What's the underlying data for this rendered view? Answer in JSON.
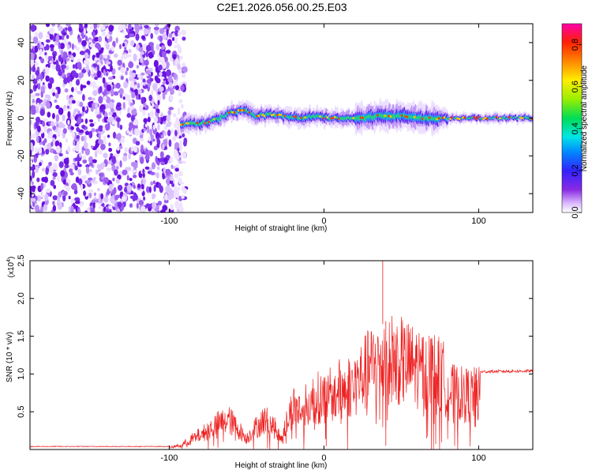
{
  "title": "C2E1.2026.056.00.25.E03",
  "colors": {
    "snr_line": "#ee2222",
    "frame": "#000000"
  },
  "chart_data": [
    {
      "type": "heatmap",
      "name": "spectrogram",
      "xlabel": "Height of straight line (km)",
      "ylabel": "Frequency (Hz)",
      "xlim": [
        -190,
        135
      ],
      "ylim": [
        -50,
        50
      ],
      "x_ticks": [
        -100,
        0,
        100
      ],
      "x_tick_labels": [
        "-100",
        "0",
        "100"
      ],
      "y_ticks": [
        -40,
        -20,
        0,
        20,
        40
      ],
      "y_tick_labels": [
        "-40",
        "-20",
        "0",
        "20",
        "40"
      ],
      "noise_region_x": [
        -190,
        -92
      ],
      "signal_ridge": [
        [
          -92,
          -3
        ],
        [
          -80,
          -3
        ],
        [
          -70,
          -1
        ],
        [
          -60,
          3
        ],
        [
          -50,
          4
        ],
        [
          -45,
          1
        ],
        [
          -35,
          2
        ],
        [
          -25,
          1
        ],
        [
          -15,
          0
        ],
        [
          -5,
          1
        ],
        [
          5,
          0
        ],
        [
          15,
          0
        ],
        [
          25,
          0
        ],
        [
          35,
          1
        ],
        [
          45,
          1
        ],
        [
          55,
          1
        ],
        [
          65,
          0
        ],
        [
          75,
          0
        ],
        [
          85,
          0
        ],
        [
          95,
          0
        ],
        [
          105,
          0
        ],
        [
          115,
          0
        ],
        [
          125,
          0
        ],
        [
          135,
          0
        ]
      ],
      "colorbar": {
        "label": "Normalized spectral amplitude",
        "range": [
          0.0,
          0.9
        ],
        "ticks": [
          0.0,
          0.2,
          0.4,
          0.6,
          0.8
        ],
        "tick_labels": [
          "0.0",
          "0.2",
          "0.4",
          "0.6",
          "0.8"
        ]
      }
    },
    {
      "type": "line",
      "name": "snr",
      "xlabel": "Height of straight line (km)",
      "ylabel": "SNR (10 * v/v)",
      "y_scale_label": "(x10",
      "y_scale_exponent": "4",
      "y_scale_close": ")",
      "xlim": [
        -190,
        135
      ],
      "ylim": [
        0,
        2.5
      ],
      "x_ticks": [
        -100,
        0,
        100
      ],
      "x_tick_labels": [
        "-100",
        "0",
        "100"
      ],
      "y_ticks": [
        0.5,
        1.0,
        1.5,
        2.0,
        2.5
      ],
      "y_tick_labels": [
        "0.5",
        "1.0",
        "1.5",
        "2.0",
        "2.5"
      ],
      "envelope": [
        [
          -190,
          0.04
        ],
        [
          -100,
          0.04
        ],
        [
          -92,
          0.08
        ],
        [
          -85,
          0.2
        ],
        [
          -78,
          0.3
        ],
        [
          -70,
          0.45
        ],
        [
          -62,
          0.55
        ],
        [
          -56,
          0.4
        ],
        [
          -50,
          0.2
        ],
        [
          -45,
          0.38
        ],
        [
          -38,
          0.55
        ],
        [
          -32,
          0.4
        ],
        [
          -28,
          0.2
        ],
        [
          -24,
          0.5
        ],
        [
          -20,
          0.8
        ],
        [
          -15,
          0.7
        ],
        [
          -10,
          0.85
        ],
        [
          -5,
          0.95
        ],
        [
          0,
          0.95
        ],
        [
          5,
          1.0
        ],
        [
          10,
          1.1
        ],
        [
          20,
          1.2
        ],
        [
          30,
          1.5
        ],
        [
          40,
          1.7
        ],
        [
          50,
          1.6
        ],
        [
          60,
          1.5
        ],
        [
          70,
          1.45
        ],
        [
          78,
          1.3
        ],
        [
          80,
          1.05
        ],
        [
          90,
          1.0
        ],
        [
          100,
          1.0
        ],
        [
          101,
          1.03
        ],
        [
          135,
          1.04
        ]
      ]
    }
  ]
}
